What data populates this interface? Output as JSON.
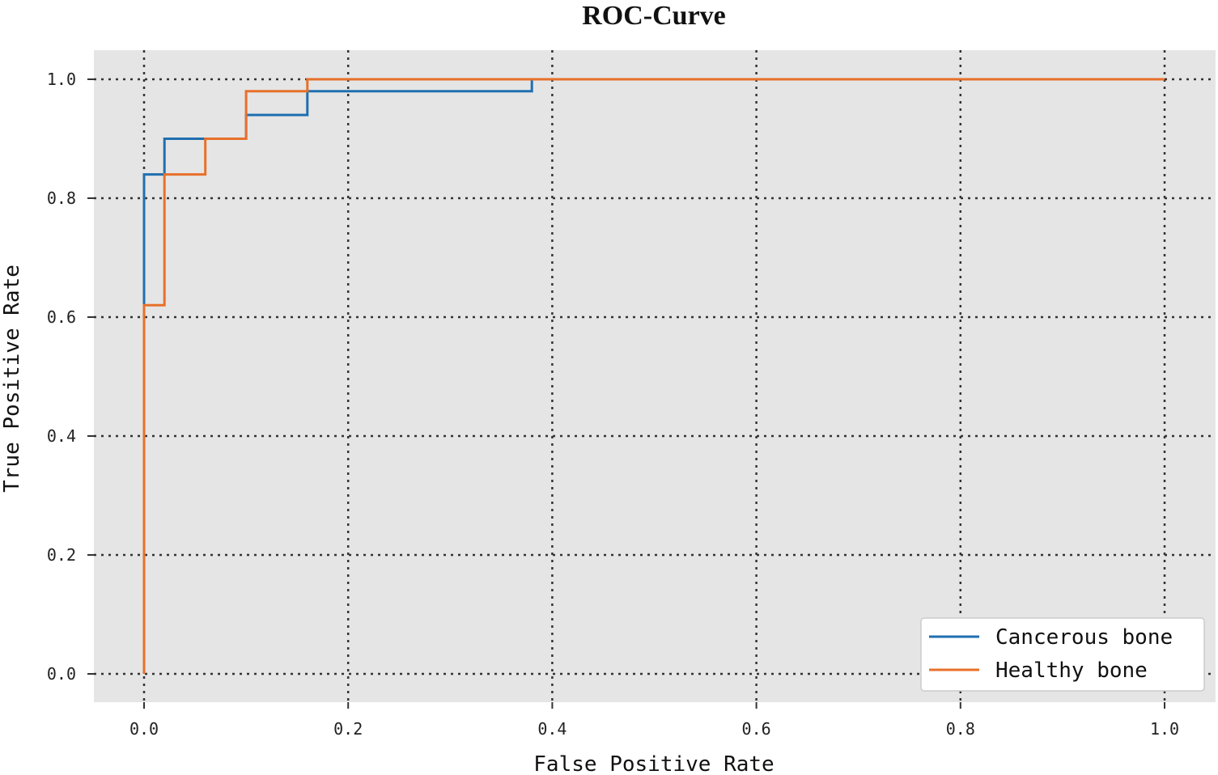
{
  "chart_data": {
    "type": "line",
    "title": "ROC-Curve",
    "xlabel": "False Positive Rate",
    "ylabel": "True Positive Rate",
    "xlim": [
      -0.05,
      1.05
    ],
    "ylim": [
      -0.05,
      1.05
    ],
    "x_ticks": [
      "0.0",
      "0.2",
      "0.4",
      "0.6",
      "0.8",
      "1.0"
    ],
    "y_ticks": [
      "0.0",
      "0.2",
      "0.4",
      "0.6",
      "0.8",
      "1.0"
    ],
    "grid": true,
    "legend_position": "lower-right",
    "series": [
      {
        "name": "Cancerous bone",
        "color": "#1f6fb0",
        "x": [
          0.0,
          0.0,
          0.0,
          0.02,
          0.02,
          0.1,
          0.1,
          0.16,
          0.16,
          0.38,
          0.38,
          1.0
        ],
        "y": [
          0.0,
          0.62,
          0.84,
          0.84,
          0.9,
          0.9,
          0.94,
          0.94,
          0.98,
          0.98,
          1.0,
          1.0
        ]
      },
      {
        "name": "Healthy bone",
        "color": "#e8702a",
        "x": [
          0.0,
          0.0,
          0.02,
          0.02,
          0.06,
          0.06,
          0.1,
          0.1,
          0.16,
          0.16,
          1.0
        ],
        "y": [
          0.0,
          0.62,
          0.62,
          0.84,
          0.84,
          0.9,
          0.9,
          0.98,
          0.98,
          1.0,
          1.0
        ]
      }
    ]
  }
}
